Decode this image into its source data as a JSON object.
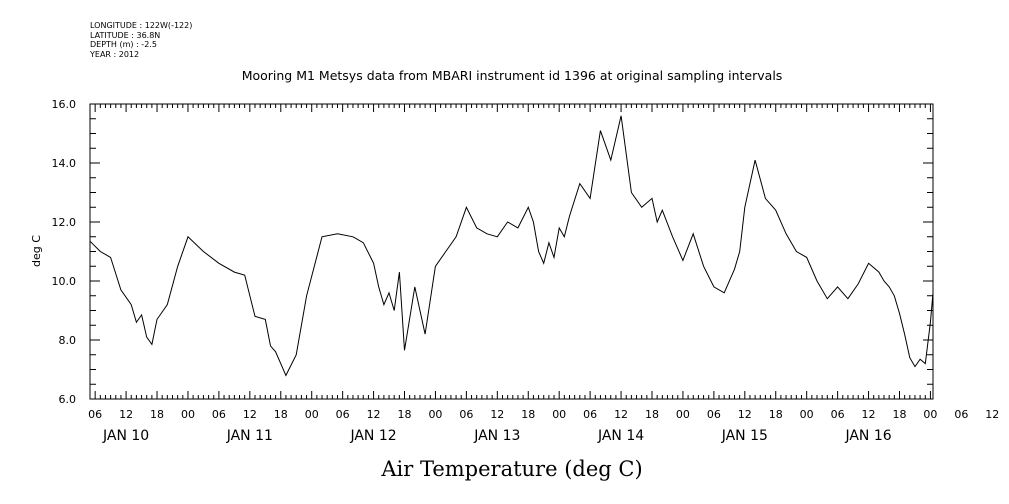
{
  "meta": {
    "longitude": "LONGITUDE : 122W(-122)",
    "latitude": "LATITUDE : 36.8N",
    "depth": "DEPTH (m) : -2.5",
    "year": "YEAR : 2012"
  },
  "chart_data": {
    "type": "line",
    "title": "Mooring M1 Metsys data from MBARI instrument id 1396 at original sampling intervals",
    "xlabel": "Air Temperature (deg C)",
    "ylabel": "deg C",
    "ylim": [
      6.0,
      16.0
    ],
    "y_ticks": [
      "6.0",
      "8.0",
      "10.0",
      "12.0",
      "14.0",
      "16.0"
    ],
    "x_start": "2012-01-10T05:00",
    "x_end": "2012-01-17T00:30",
    "x_tick_labels": [
      "06",
      "12",
      "18",
      "00",
      "06",
      "12",
      "18",
      "00",
      "06",
      "12",
      "18",
      "00",
      "06",
      "12",
      "18",
      "00",
      "06",
      "12",
      "18",
      "00",
      "06",
      "12",
      "18",
      "00",
      "06",
      "12",
      "18",
      "00",
      "06",
      "12",
      "18",
      "00"
    ],
    "day_labels": [
      "JAN 10",
      "JAN 11",
      "JAN 12",
      "JAN 13",
      "JAN 14",
      "JAN 15",
      "JAN 16"
    ],
    "series": [
      {
        "x": [
          "2012-01-10T05:00",
          "2012-01-10T07:00",
          "2012-01-10T09:00",
          "2012-01-10T11:00",
          "2012-01-10T13:00",
          "2012-01-10T14:00",
          "2012-01-10T15:00",
          "2012-01-10T16:00",
          "2012-01-10T17:00",
          "2012-01-10T18:00",
          "2012-01-10T20:00",
          "2012-01-10T22:00",
          "2012-01-11T00:00",
          "2012-01-11T03:00",
          "2012-01-11T06:00",
          "2012-01-11T09:00",
          "2012-01-11T11:00",
          "2012-01-11T13:00",
          "2012-01-11T15:00",
          "2012-01-11T16:00",
          "2012-01-11T17:00",
          "2012-01-11T19:00",
          "2012-01-11T21:00",
          "2012-01-11T23:00",
          "2012-01-12T02:00",
          "2012-01-12T05:00",
          "2012-01-12T08:00",
          "2012-01-12T10:00",
          "2012-01-12T12:00",
          "2012-01-12T13:00",
          "2012-01-12T14:00",
          "2012-01-12T15:00",
          "2012-01-12T16:00",
          "2012-01-12T17:00",
          "2012-01-12T18:00",
          "2012-01-12T20:00",
          "2012-01-12T22:00",
          "2012-01-13T00:00",
          "2012-01-13T02:00",
          "2012-01-13T04:00",
          "2012-01-13T06:00",
          "2012-01-13T08:00",
          "2012-01-13T10:00",
          "2012-01-13T12:00",
          "2012-01-13T14:00",
          "2012-01-13T16:00",
          "2012-01-13T18:00",
          "2012-01-13T19:00",
          "2012-01-13T20:00",
          "2012-01-13T21:00",
          "2012-01-13T22:00",
          "2012-01-13T23:00",
          "2012-01-14T00:00",
          "2012-01-14T01:00",
          "2012-01-14T02:00",
          "2012-01-14T04:00",
          "2012-01-14T06:00",
          "2012-01-14T08:00",
          "2012-01-14T10:00",
          "2012-01-14T12:00",
          "2012-01-14T14:00",
          "2012-01-14T16:00",
          "2012-01-14T18:00",
          "2012-01-14T19:00",
          "2012-01-14T20:00",
          "2012-01-14T22:00",
          "2012-01-15T00:00",
          "2012-01-15T02:00",
          "2012-01-15T04:00",
          "2012-01-15T06:00",
          "2012-01-15T08:00",
          "2012-01-15T10:00",
          "2012-01-15T11:00",
          "2012-01-15T12:00",
          "2012-01-15T14:00",
          "2012-01-15T16:00",
          "2012-01-15T18:00",
          "2012-01-15T20:00",
          "2012-01-15T22:00",
          "2012-01-16T00:00",
          "2012-01-16T02:00",
          "2012-01-16T04:00",
          "2012-01-16T06:00",
          "2012-01-16T08:00",
          "2012-01-16T10:00",
          "2012-01-16T12:00",
          "2012-01-16T14:00",
          "2012-01-16T15:00",
          "2012-01-16T16:00",
          "2012-01-16T17:00",
          "2012-01-16T18:00",
          "2012-01-16T19:00",
          "2012-01-16T20:00",
          "2012-01-16T21:00",
          "2012-01-16T22:00",
          "2012-01-16T23:00",
          "2012-01-17T00:00",
          "2012-01-17T00:30"
        ],
        "values": [
          11.35,
          11.0,
          10.8,
          9.7,
          9.2,
          8.6,
          8.85,
          8.1,
          7.85,
          8.7,
          9.2,
          10.5,
          11.5,
          11.0,
          10.6,
          10.3,
          10.2,
          8.8,
          8.7,
          7.8,
          7.6,
          6.8,
          7.5,
          9.5,
          11.5,
          11.6,
          11.5,
          11.3,
          10.6,
          9.8,
          9.2,
          9.6,
          9.0,
          10.3,
          7.65,
          9.8,
          8.2,
          10.5,
          11.0,
          11.5,
          12.5,
          11.8,
          11.6,
          11.5,
          12.0,
          11.8,
          12.5,
          12.0,
          11.0,
          10.6,
          11.3,
          10.8,
          11.8,
          11.5,
          12.2,
          13.3,
          12.8,
          15.1,
          14.1,
          15.6,
          13.0,
          12.5,
          12.8,
          12.0,
          12.4,
          11.5,
          10.7,
          11.6,
          10.5,
          9.8,
          9.6,
          10.4,
          11.0,
          12.5,
          14.1,
          12.8,
          12.4,
          11.6,
          11.0,
          10.8,
          10.0,
          9.4,
          9.8,
          9.4,
          9.9,
          10.6,
          10.3,
          10.0,
          9.8,
          9.5,
          8.9,
          8.2,
          7.4,
          7.1,
          7.35,
          7.2,
          8.6,
          9.6
        ]
      }
    ]
  }
}
